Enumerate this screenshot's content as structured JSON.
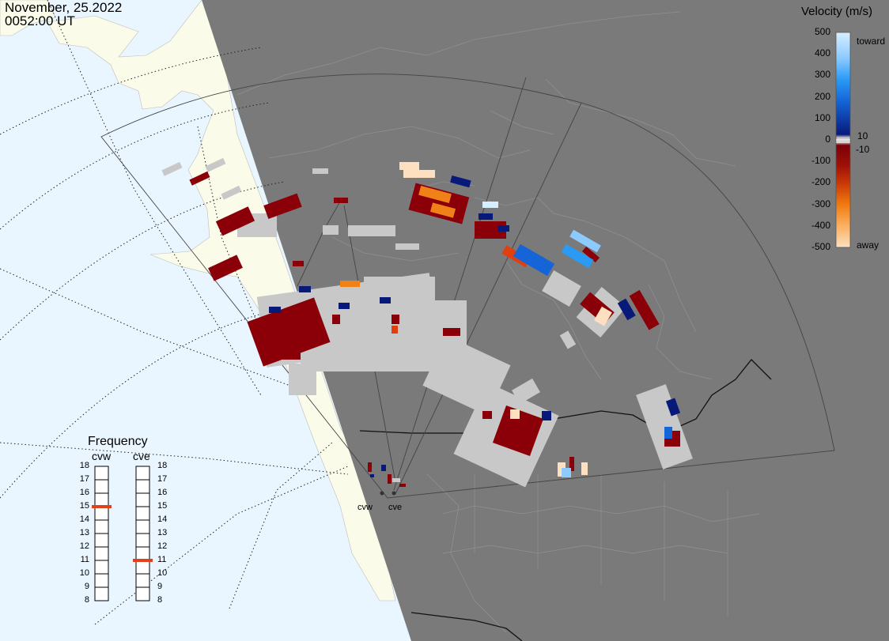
{
  "timestamp": {
    "date": "November, 25.2022",
    "time": "0052:00 UT"
  },
  "colorbar": {
    "title": "Velocity (m/s)",
    "ticks": [
      "500",
      "400",
      "300",
      "200",
      "100",
      "0",
      "-100",
      "-200",
      "-300",
      "-400",
      "-500"
    ],
    "toward_label": "toward",
    "away_label": "away",
    "inner_pos_label": "10",
    "inner_neg_label": "-10",
    "colors": {
      "toward_top": "#d6eeff",
      "toward_mid": "#1e8ff0",
      "toward_low": "#0d3fa8",
      "toward_min": "#071a7a",
      "zero_band": "#c8c8c8",
      "away_min": "#7a0008",
      "away_low": "#b51e06",
      "away_mid": "#f07a10",
      "away_top": "#fde0c0"
    }
  },
  "frequency": {
    "title": "Frequency",
    "unit_hint": "",
    "scale": [
      "18",
      "17",
      "16",
      "15",
      "14",
      "13",
      "12",
      "11",
      "10",
      "9",
      "8"
    ],
    "radars": [
      {
        "name": "cvw",
        "value_mhz": 15
      },
      {
        "name": "cve",
        "value_mhz": 11
      }
    ],
    "marker_color": "#e0401a"
  },
  "radar_sites": [
    {
      "name": "cvw"
    },
    {
      "name": "cve"
    }
  ],
  "map_colors": {
    "ocean_day": "#eaf6ff",
    "land_day": "#fbfbe9",
    "night": "#7a7a7a",
    "borders": "#9a9a9a",
    "national_borders": "#111111",
    "ground_scatter": "#c8c8c8"
  }
}
